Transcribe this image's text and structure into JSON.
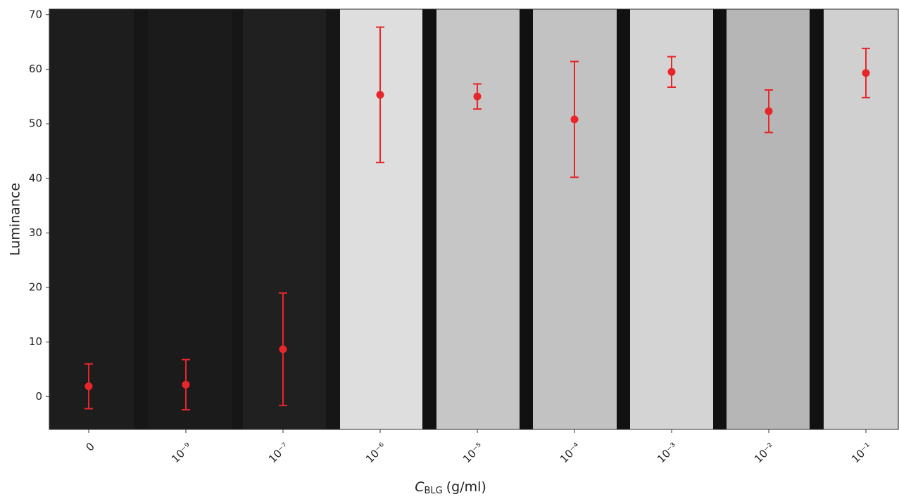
{
  "chart_data": {
    "type": "errorbar",
    "y_label": "Luminance",
    "x_label": {
      "symbol": "C",
      "subscript": "BLG",
      "unit": "(g/ml)"
    },
    "categories": [
      "0",
      "10⁻⁹",
      "10⁻⁷",
      "10⁻⁶",
      "10⁻⁵",
      "10⁻⁴",
      "10⁻³",
      "10⁻²",
      "10⁻¹"
    ],
    "values": [
      1.9,
      2.2,
      8.7,
      55.3,
      55.0,
      50.8,
      59.5,
      52.3,
      59.3
    ],
    "errors": [
      4.1,
      4.6,
      10.3,
      12.4,
      2.3,
      10.6,
      2.8,
      3.9,
      4.5
    ],
    "color": "#e8262a",
    "ylim": [
      -6,
      71
    ],
    "yticks": [
      0,
      10,
      20,
      30,
      40,
      50,
      60,
      70
    ]
  }
}
